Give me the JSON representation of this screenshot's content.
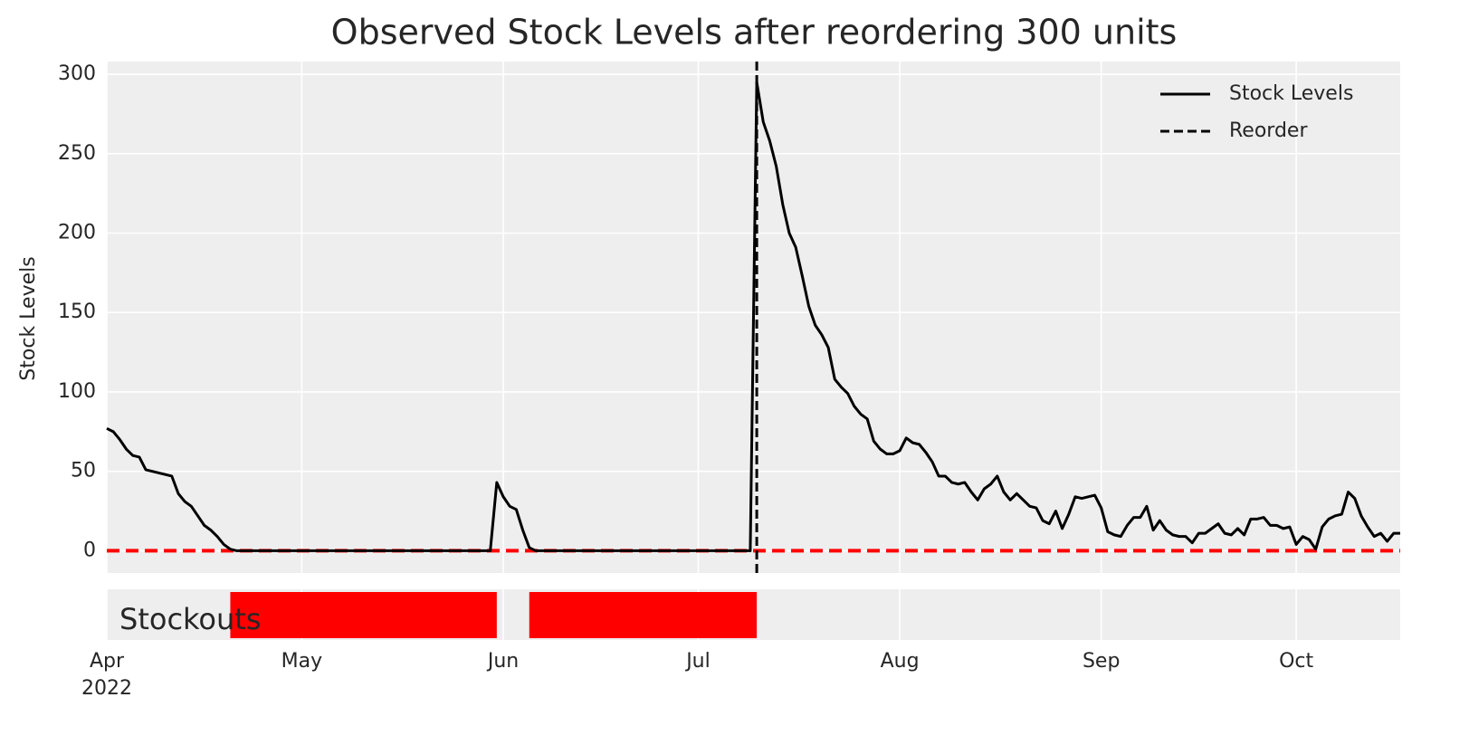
{
  "chart_data": {
    "type": "line",
    "title": "Observed Stock Levels after reordering 300 units",
    "y_label": "Stock Levels",
    "x": [
      "2022-04-01",
      "2022-04-02",
      "2022-04-03",
      "2022-04-04",
      "2022-04-05",
      "2022-04-06",
      "2022-04-07",
      "2022-04-08",
      "2022-04-09",
      "2022-04-10",
      "2022-04-11",
      "2022-04-12",
      "2022-04-13",
      "2022-04-14",
      "2022-04-15",
      "2022-04-16",
      "2022-04-17",
      "2022-04-18",
      "2022-04-19",
      "2022-04-20",
      "2022-04-21",
      "2022-04-22",
      "2022-04-23",
      "2022-04-24",
      "2022-04-25",
      "2022-04-26",
      "2022-04-27",
      "2022-04-28",
      "2022-04-29",
      "2022-04-30",
      "2022-05-01",
      "2022-05-02",
      "2022-05-03",
      "2022-05-04",
      "2022-05-05",
      "2022-05-06",
      "2022-05-07",
      "2022-05-08",
      "2022-05-09",
      "2022-05-10",
      "2022-05-11",
      "2022-05-12",
      "2022-05-13",
      "2022-05-14",
      "2022-05-15",
      "2022-05-16",
      "2022-05-17",
      "2022-05-18",
      "2022-05-19",
      "2022-05-20",
      "2022-05-21",
      "2022-05-22",
      "2022-05-23",
      "2022-05-24",
      "2022-05-25",
      "2022-05-26",
      "2022-05-27",
      "2022-05-28",
      "2022-05-29",
      "2022-05-30",
      "2022-05-31",
      "2022-06-01",
      "2022-06-02",
      "2022-06-03",
      "2022-06-04",
      "2022-06-05",
      "2022-06-06",
      "2022-06-07",
      "2022-06-08",
      "2022-06-09",
      "2022-06-10",
      "2022-06-11",
      "2022-06-12",
      "2022-06-13",
      "2022-06-14",
      "2022-06-15",
      "2022-06-16",
      "2022-06-17",
      "2022-06-18",
      "2022-06-19",
      "2022-06-20",
      "2022-06-21",
      "2022-06-22",
      "2022-06-23",
      "2022-06-24",
      "2022-06-25",
      "2022-06-26",
      "2022-06-27",
      "2022-06-28",
      "2022-06-29",
      "2022-06-30",
      "2022-07-01",
      "2022-07-02",
      "2022-07-03",
      "2022-07-04",
      "2022-07-05",
      "2022-07-06",
      "2022-07-07",
      "2022-07-08",
      "2022-07-09",
      "2022-07-10",
      "2022-07-11",
      "2022-07-12",
      "2022-07-13",
      "2022-07-14",
      "2022-07-15",
      "2022-07-16",
      "2022-07-17",
      "2022-07-18",
      "2022-07-19",
      "2022-07-20",
      "2022-07-21",
      "2022-07-22",
      "2022-07-23",
      "2022-07-24",
      "2022-07-25",
      "2022-07-26",
      "2022-07-27",
      "2022-07-28",
      "2022-07-29",
      "2022-07-30",
      "2022-07-31",
      "2022-08-01",
      "2022-08-02",
      "2022-08-03",
      "2022-08-04",
      "2022-08-05",
      "2022-08-06",
      "2022-08-07",
      "2022-08-08",
      "2022-08-09",
      "2022-08-10",
      "2022-08-11",
      "2022-08-12",
      "2022-08-13",
      "2022-08-14",
      "2022-08-15",
      "2022-08-16",
      "2022-08-17",
      "2022-08-18",
      "2022-08-19",
      "2022-08-20",
      "2022-08-21",
      "2022-08-22",
      "2022-08-23",
      "2022-08-24",
      "2022-08-25",
      "2022-08-26",
      "2022-08-27",
      "2022-08-28",
      "2022-08-29",
      "2022-08-30",
      "2022-08-31",
      "2022-09-01",
      "2022-09-02",
      "2022-09-03",
      "2022-09-04",
      "2022-09-05",
      "2022-09-06",
      "2022-09-07",
      "2022-09-08",
      "2022-09-09",
      "2022-09-10",
      "2022-09-11",
      "2022-09-12",
      "2022-09-13",
      "2022-09-14",
      "2022-09-15",
      "2022-09-16",
      "2022-09-17",
      "2022-09-18",
      "2022-09-19",
      "2022-09-20",
      "2022-09-21",
      "2022-09-22",
      "2022-09-23",
      "2022-09-24",
      "2022-09-25",
      "2022-09-26",
      "2022-09-27",
      "2022-09-28",
      "2022-09-29",
      "2022-09-30",
      "2022-10-01",
      "2022-10-02",
      "2022-10-03",
      "2022-10-04",
      "2022-10-05",
      "2022-10-06",
      "2022-10-07",
      "2022-10-08",
      "2022-10-09",
      "2022-10-10",
      "2022-10-11",
      "2022-10-12",
      "2022-10-13",
      "2022-10-14",
      "2022-10-15",
      "2022-10-16",
      "2022-10-17"
    ],
    "series": [
      {
        "name": "Stock Levels",
        "color": "#000000",
        "values": [
          77,
          75,
          70,
          64,
          60,
          59,
          51,
          50,
          49,
          48,
          47,
          36,
          31,
          28,
          22,
          16,
          13,
          9,
          4,
          1,
          0,
          0,
          0,
          0,
          0,
          0,
          0,
          0,
          0,
          0,
          0,
          0,
          0,
          0,
          0,
          0,
          0,
          0,
          0,
          0,
          0,
          0,
          0,
          0,
          0,
          0,
          0,
          0,
          0,
          0,
          0,
          0,
          0,
          0,
          0,
          0,
          0,
          0,
          0,
          0,
          43,
          34,
          28,
          26,
          13,
          2,
          0,
          0,
          0,
          0,
          0,
          0,
          0,
          0,
          0,
          0,
          0,
          0,
          0,
          0,
          0,
          0,
          0,
          0,
          0,
          0,
          0,
          0,
          0,
          0,
          0,
          0,
          0,
          0,
          0,
          0,
          0,
          0,
          0,
          0,
          295,
          270,
          258,
          242,
          218,
          200,
          191,
          173,
          154,
          142,
          136,
          128,
          108,
          103,
          99,
          91,
          86,
          83,
          69,
          64,
          61,
          61,
          63,
          71,
          68,
          67,
          62,
          56,
          47,
          47,
          43,
          42,
          43,
          37,
          32,
          39,
          42,
          47,
          37,
          32,
          36,
          32,
          28,
          27,
          19,
          17,
          25,
          14,
          23,
          34,
          33,
          34,
          35,
          27,
          12,
          10,
          9,
          16,
          21,
          21,
          28,
          13,
          19,
          13,
          10,
          9,
          9,
          5,
          11,
          11,
          14,
          17,
          11,
          10,
          14,
          10,
          20,
          20,
          21,
          16,
          16,
          14,
          15,
          4,
          9,
          7,
          1,
          15,
          20,
          22,
          23,
          37,
          33,
          22,
          15,
          9,
          11,
          6,
          11,
          11
        ]
      }
    ],
    "reorder": {
      "name": "Reorder",
      "date": "2022-07-10",
      "color": "#000000"
    },
    "hline": {
      "value": 0,
      "color": "#ff0000"
    },
    "stockouts": {
      "label": "Stockouts",
      "color": "#ff0000",
      "periods": [
        {
          "start": "2022-04-20",
          "end": "2022-05-31"
        },
        {
          "start": "2022-06-05",
          "end": "2022-07-10"
        }
      ]
    },
    "xlim": [
      "2022-04-01",
      "2022-10-17"
    ],
    "xticks": [
      {
        "value": "2022-04-01",
        "label": "Apr"
      },
      {
        "value": "2022-05-01",
        "label": "May"
      },
      {
        "value": "2022-06-01",
        "label": "Jun"
      },
      {
        "value": "2022-07-01",
        "label": "Jul"
      },
      {
        "value": "2022-08-01",
        "label": "Aug"
      },
      {
        "value": "2022-09-01",
        "label": "Sep"
      },
      {
        "value": "2022-10-01",
        "label": "Oct"
      }
    ],
    "x_year_label": "2022",
    "ylim": [
      -14,
      308
    ],
    "yticks": [
      0,
      50,
      100,
      150,
      200,
      250,
      300
    ],
    "grid": true,
    "legend": "upper right"
  }
}
